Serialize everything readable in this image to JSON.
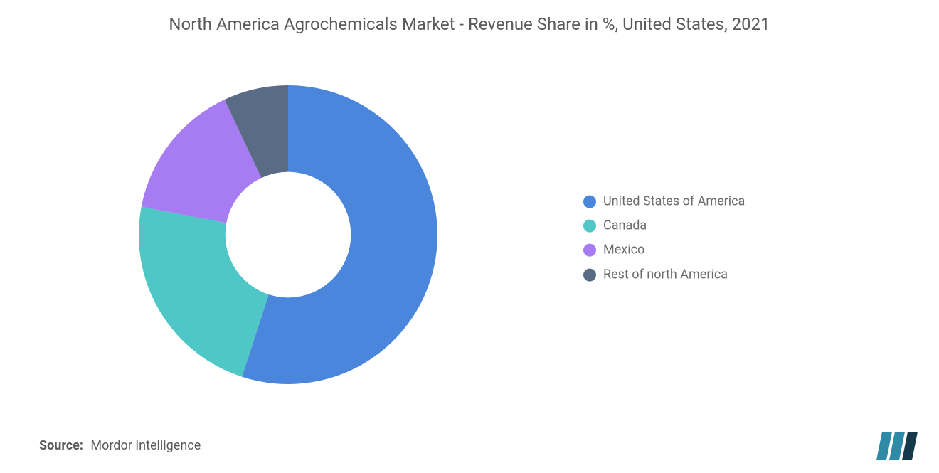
{
  "title": "North America Agrochemicals Market - Revenue Share in %, United States, 2021",
  "chart": {
    "type": "donut",
    "background_color": "#ffffff",
    "inner_radius_ratio": 0.42,
    "outer_radius": 210,
    "start_angle_deg": 0,
    "slices": [
      {
        "label": "United States of America",
        "value": 55,
        "color": "#4a86db"
      },
      {
        "label": "Canada",
        "value": 23,
        "color": "#4fc7c6"
      },
      {
        "label": "Mexico",
        "value": 15,
        "color": "#a77bf2"
      },
      {
        "label": "Rest of north America",
        "value": 7,
        "color": "#5a6b85"
      }
    ]
  },
  "legend": {
    "items": [
      {
        "label": "United States of America",
        "color": "#4a86db"
      },
      {
        "label": "Canada",
        "color": "#4fc7c6"
      },
      {
        "label": "Mexico",
        "color": "#a77bf2"
      },
      {
        "label": "Rest of north America",
        "color": "#5a6b85"
      }
    ],
    "fontsize": 18,
    "text_color": "#6b6b6b"
  },
  "source": {
    "label": "Source:",
    "value": "Mordor Intelligence"
  },
  "logo_colors": {
    "bar1": "#2f8aa8",
    "bar2": "#2f8aa8",
    "bar3": "#163a4a"
  }
}
